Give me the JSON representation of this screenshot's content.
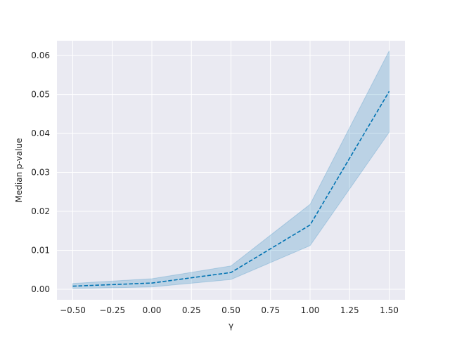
{
  "chart_data": {
    "type": "line",
    "xlabel": "γ",
    "ylabel": "Median p-value",
    "xlim": [
      -0.6,
      1.6
    ],
    "ylim": [
      -0.0027,
      0.0638
    ],
    "xticks": [
      -0.5,
      -0.25,
      0.0,
      0.25,
      0.5,
      0.75,
      1.0,
      1.25,
      1.5
    ],
    "xtick_labels": [
      "−0.50",
      "−0.25",
      "0.00",
      "0.25",
      "0.50",
      "0.75",
      "1.00",
      "1.25",
      "1.50"
    ],
    "yticks": [
      0.0,
      0.01,
      0.02,
      0.03,
      0.04,
      0.05,
      0.06
    ],
    "ytick_labels": [
      "0.00",
      "0.01",
      "0.02",
      "0.03",
      "0.04",
      "0.05",
      "0.06"
    ],
    "grid": true,
    "line_style": "dashed",
    "series": [
      {
        "x": [
          -0.5,
          0.0,
          0.5,
          1.0,
          1.5
        ],
        "y": [
          0.0008,
          0.0016,
          0.0043,
          0.0165,
          0.0508
        ],
        "lower": [
          0.0002,
          0.0006,
          0.0025,
          0.0112,
          0.0403
        ],
        "upper": [
          0.0015,
          0.0027,
          0.006,
          0.0218,
          0.0612
        ],
        "color": "#0173b2",
        "band_color": "#0173b2"
      }
    ],
    "colors": {
      "plot_background": "#eaeaf2",
      "grid": "#ffffff",
      "text": "#262626"
    }
  }
}
